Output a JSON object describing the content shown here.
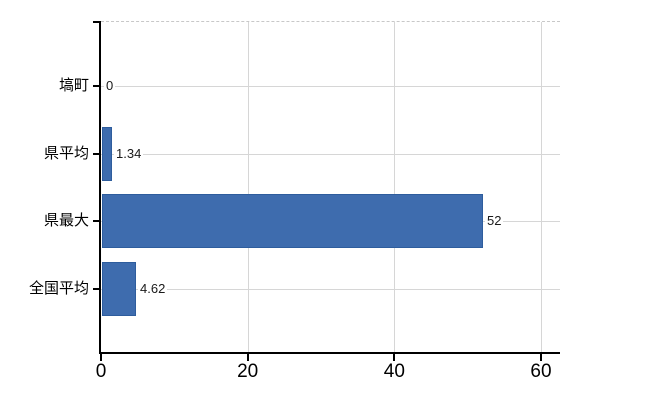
{
  "chart_data": {
    "type": "bar",
    "orientation": "horizontal",
    "title": "",
    "categories": [
      "塙町",
      "県平均",
      "県最大",
      "全国平均"
    ],
    "values": [
      0,
      1.34,
      52,
      4.62
    ],
    "value_labels": [
      "0",
      "1.34",
      "52",
      "4.62"
    ],
    "x_ticks": [
      0,
      20,
      40,
      60
    ],
    "x_tick_labels": [
      "0",
      "20",
      "40",
      "60"
    ],
    "xlim": [
      0,
      62.6
    ],
    "grid": "on",
    "legend": "none",
    "bar_color": "#3e6cae",
    "bar_border_color": "#2e5d9d",
    "gridline_color": "#d6d6d6",
    "axis_color": "#000000",
    "background_color": "#ffffff"
  }
}
